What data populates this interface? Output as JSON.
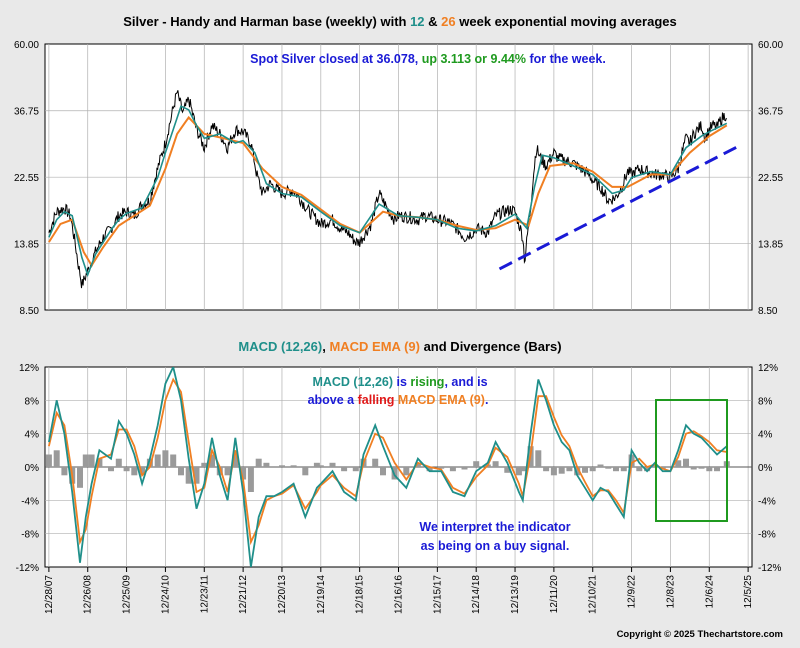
{
  "colors": {
    "background": "#e9e9e9",
    "panel": "#ffffff",
    "price": "#000000",
    "ema_fast": "#1f8f8a",
    "ema_slow": "#f07f22",
    "trendline": "#1a1ad6",
    "histogram": "#9a9a9a",
    "highlight_box": "#1f9a1f",
    "green_text": "#1f9a1f",
    "blue_text": "#1a1ad6",
    "red_text": "#e01818"
  },
  "top_title": {
    "part1": "Silver - Handy and Harman base (weekly) with ",
    "fast": "12",
    "amp": " & ",
    "slow": "26",
    "part2": " week exponential moving averages"
  },
  "top_annotation": {
    "part1": "Spot Silver closed at 36.078, ",
    "part2": "up 3.113 or 9.44%",
    "part3": " for the week."
  },
  "bottom_title": {
    "macd": "MACD (12,26)",
    "sep": ", ",
    "ema": "MACD EMA (9)",
    "rest": " and Divergence (Bars)"
  },
  "bottom_annotation": {
    "line1_a": "MACD (12,26)",
    "line1_b": " is ",
    "line1_c": "rising",
    "line1_d": ", and is",
    "line2_a": "above a ",
    "line2_b": "falling",
    "line2_c": " MACD EMA (9)",
    "line2_d": "."
  },
  "interpretation": {
    "line1": "We interpret the indicator",
    "line2": "as being on a buy signal."
  },
  "copyright": "Copyright © 2025 Thechartstore.com",
  "chart_data": [
    {
      "type": "line",
      "title": "Silver - Handy and Harman base (weekly) with 12 & 26 week exponential moving averages",
      "y_scale": "log",
      "ylim": [
        8.5,
        60.0
      ],
      "y_ticks": [
        "60.00",
        "36.75",
        "22.55",
        "13.85",
        "8.50"
      ],
      "y_tick_values": [
        60.0,
        36.75,
        22.55,
        13.85,
        8.5
      ],
      "x_tick_labels": [
        "12/28/07",
        "12/26/08",
        "12/25/09",
        "12/24/10",
        "12/23/11",
        "12/21/12",
        "12/20/13",
        "12/19/14",
        "12/18/15",
        "12/16/16",
        "12/15/17",
        "12/14/18",
        "12/13/19",
        "12/11/20",
        "12/10/21",
        "12/9/22",
        "12/8/23",
        "12/6/24",
        "12/5/25"
      ],
      "x_tick_years": [
        2008.0,
        2009.0,
        2010.0,
        2011.0,
        2012.0,
        2013.0,
        2014.0,
        2015.0,
        2016.0,
        2017.0,
        2018.0,
        2019.0,
        2020.0,
        2021.0,
        2022.0,
        2023.0,
        2024.0,
        2025.0,
        2026.0
      ],
      "xlim": [
        2007.9,
        2026.1
      ],
      "series": [
        {
          "name": "Silver (weekly)",
          "x": [
            2008.0,
            2008.2,
            2008.4,
            2008.55,
            2008.75,
            2008.85,
            2009.0,
            2009.2,
            2009.4,
            2009.6,
            2009.8,
            2010.0,
            2010.2,
            2010.4,
            2010.6,
            2010.8,
            2011.0,
            2011.15,
            2011.3,
            2011.45,
            2011.6,
            2011.8,
            2012.0,
            2012.2,
            2012.4,
            2012.6,
            2012.8,
            2013.0,
            2013.2,
            2013.35,
            2013.5,
            2013.7,
            2014.0,
            2014.3,
            2014.5,
            2014.7,
            2014.9,
            2015.0,
            2015.3,
            2015.5,
            2015.7,
            2015.9,
            2016.0,
            2016.3,
            2016.5,
            2016.7,
            2016.9,
            2017.0,
            2017.3,
            2017.5,
            2017.7,
            2018.0,
            2018.3,
            2018.5,
            2018.7,
            2018.9,
            2019.0,
            2019.3,
            2019.5,
            2019.7,
            2019.9,
            2020.0,
            2020.2,
            2020.25,
            2020.4,
            2020.55,
            2020.65,
            2020.8,
            2021.0,
            2021.1,
            2021.3,
            2021.5,
            2021.7,
            2021.9,
            2022.0,
            2022.2,
            2022.4,
            2022.6,
            2022.75,
            2022.9,
            2023.0,
            2023.2,
            2023.4,
            2023.6,
            2023.8,
            2024.0,
            2024.2,
            2024.4,
            2024.5,
            2024.6,
            2024.8,
            2024.9,
            2025.0,
            2025.1,
            2025.2,
            2025.3,
            2025.45
          ],
          "y": [
            15.0,
            17.5,
            18.0,
            17.0,
            12.0,
            10.2,
            11.3,
            13.0,
            14.5,
            15.5,
            17.0,
            17.5,
            17.0,
            18.5,
            19.0,
            24.0,
            29.0,
            35.0,
            42.0,
            36.0,
            40.0,
            32.0,
            28.0,
            33.0,
            31.0,
            28.0,
            32.0,
            31.5,
            29.0,
            23.0,
            20.0,
            21.5,
            20.0,
            20.5,
            19.0,
            17.5,
            16.5,
            16.0,
            16.5,
            15.5,
            15.0,
            14.0,
            14.0,
            16.0,
            20.0,
            18.0,
            16.5,
            17.0,
            16.8,
            16.5,
            17.0,
            16.5,
            16.2,
            15.5,
            14.5,
            15.0,
            15.5,
            15.0,
            17.0,
            17.5,
            17.8,
            17.5,
            14.5,
            12.0,
            18.0,
            28.0,
            26.0,
            24.5,
            27.0,
            26.0,
            25.5,
            25.0,
            24.0,
            23.0,
            22.0,
            21.0,
            19.0,
            19.5,
            21.0,
            23.5,
            23.0,
            24.0,
            23.5,
            23.0,
            23.0,
            22.5,
            24.0,
            30.0,
            29.0,
            31.0,
            33.0,
            30.0,
            32.0,
            33.0,
            32.5,
            34.5,
            36.0
          ]
        },
        {
          "name": "12 week EMA",
          "x": [
            2008.0,
            2008.2,
            2008.4,
            2008.6,
            2008.85,
            2009.0,
            2009.2,
            2009.4,
            2009.6,
            2009.8,
            2010.0,
            2010.4,
            2010.8,
            2011.0,
            2011.2,
            2011.4,
            2011.6,
            2011.8,
            2012.0,
            2012.4,
            2012.8,
            2013.0,
            2013.3,
            2013.6,
            2014.0,
            2014.5,
            2015.0,
            2015.5,
            2016.0,
            2016.5,
            2017.0,
            2017.5,
            2018.0,
            2018.5,
            2019.0,
            2019.5,
            2020.0,
            2020.3,
            2020.5,
            2020.7,
            2021.0,
            2021.5,
            2022.0,
            2022.5,
            2022.8,
            2023.0,
            2023.5,
            2024.0,
            2024.4,
            2024.8,
            2025.0,
            2025.45
          ],
          "y": [
            14.5,
            16.5,
            17.5,
            17.0,
            12.5,
            11.0,
            12.8,
            14.0,
            15.3,
            16.5,
            17.3,
            18.0,
            22.5,
            27.0,
            32.0,
            38.0,
            37.0,
            33.0,
            30.0,
            31.0,
            29.0,
            29.5,
            27.0,
            21.5,
            20.0,
            19.5,
            17.5,
            15.8,
            15.0,
            18.5,
            17.0,
            16.8,
            16.5,
            15.5,
            15.2,
            15.8,
            17.2,
            15.5,
            21.0,
            26.5,
            26.0,
            24.5,
            23.0,
            20.0,
            20.5,
            22.5,
            23.5,
            23.0,
            28.0,
            30.5,
            31.5,
            33.5
          ]
        },
        {
          "name": "26 week EMA",
          "x": [
            2008.0,
            2008.3,
            2008.6,
            2008.9,
            2009.1,
            2009.4,
            2009.8,
            2010.2,
            2010.6,
            2011.0,
            2011.3,
            2011.6,
            2012.0,
            2012.5,
            2013.0,
            2013.5,
            2014.0,
            2014.5,
            2015.0,
            2015.5,
            2016.0,
            2016.6,
            2017.0,
            2017.5,
            2018.0,
            2018.5,
            2019.0,
            2019.5,
            2020.0,
            2020.35,
            2020.6,
            2020.9,
            2021.5,
            2022.0,
            2022.5,
            2022.9,
            2023.5,
            2024.0,
            2024.5,
            2025.0,
            2025.45
          ],
          "y": [
            14.0,
            16.0,
            16.5,
            13.0,
            11.8,
            13.5,
            15.8,
            17.0,
            18.3,
            24.0,
            31.0,
            35.0,
            31.0,
            30.0,
            29.0,
            24.0,
            21.0,
            19.8,
            17.8,
            16.0,
            15.0,
            17.5,
            17.0,
            16.8,
            16.5,
            15.8,
            15.3,
            15.5,
            16.5,
            15.8,
            20.0,
            24.5,
            25.0,
            23.5,
            21.0,
            21.0,
            23.0,
            23.0,
            27.0,
            30.5,
            33.0
          ]
        },
        {
          "name": "Trendline",
          "x": [
            2019.6,
            2025.8
          ],
          "y": [
            11.5,
            28.5
          ]
        }
      ]
    },
    {
      "type": "line",
      "title": "MACD (12,26), MACD EMA (9) and Divergence (Bars)",
      "ylim": [
        -12,
        12
      ],
      "y_ticks": [
        "12%",
        "8%",
        "4%",
        "0%",
        "-4%",
        "-8%",
        "-12%"
      ],
      "y_tick_values": [
        12,
        8,
        4,
        0,
        -4,
        -8,
        -12
      ],
      "series": [
        {
          "name": "MACD (12,26)",
          "x": [
            2008.0,
            2008.2,
            2008.4,
            2008.6,
            2008.8,
            2008.95,
            2009.1,
            2009.3,
            2009.6,
            2009.8,
            2010.0,
            2010.2,
            2010.4,
            2010.6,
            2010.8,
            2011.0,
            2011.2,
            2011.4,
            2011.6,
            2011.8,
            2012.0,
            2012.2,
            2012.4,
            2012.6,
            2012.8,
            2013.0,
            2013.2,
            2013.4,
            2013.6,
            2013.8,
            2014.0,
            2014.3,
            2014.6,
            2014.9,
            2015.0,
            2015.3,
            2015.6,
            2015.9,
            2016.1,
            2016.4,
            2016.6,
            2016.9,
            2017.2,
            2017.5,
            2017.8,
            2018.1,
            2018.4,
            2018.7,
            2019.0,
            2019.3,
            2019.5,
            2019.8,
            2020.1,
            2020.2,
            2020.4,
            2020.6,
            2020.8,
            2021.0,
            2021.2,
            2021.4,
            2021.6,
            2021.8,
            2022.0,
            2022.2,
            2022.4,
            2022.6,
            2022.8,
            2023.0,
            2023.2,
            2023.4,
            2023.6,
            2023.8,
            2024.0,
            2024.2,
            2024.4,
            2024.6,
            2024.8,
            2025.0,
            2025.2,
            2025.45
          ],
          "y": [
            3.0,
            8.0,
            4.0,
            -3.0,
            -11.5,
            -6.0,
            -2.0,
            2.0,
            1.0,
            5.5,
            4.0,
            1.5,
            -2.0,
            1.0,
            5.0,
            10.0,
            12.0,
            8.0,
            1.0,
            -5.0,
            -2.0,
            3.5,
            -1.0,
            -4.0,
            3.5,
            -3.0,
            -12.0,
            -6.0,
            -3.5,
            -3.5,
            -3.0,
            -2.0,
            -6.0,
            -2.5,
            -2.0,
            -0.5,
            -3.0,
            -4.0,
            1.5,
            5.0,
            2.5,
            -1.0,
            -2.5,
            1.0,
            -0.5,
            -0.5,
            -3.0,
            -3.5,
            -0.5,
            0.5,
            3.0,
            0.5,
            -3.0,
            -4.0,
            4.0,
            10.5,
            8.0,
            5.0,
            3.0,
            2.0,
            -1.0,
            -2.5,
            -4.0,
            -2.5,
            -3.0,
            -4.5,
            -6.0,
            2.0,
            0.5,
            -0.5,
            0.5,
            -0.5,
            -0.5,
            2.0,
            5.0,
            4.0,
            3.5,
            2.5,
            1.5,
            2.5
          ]
        },
        {
          "name": "MACD EMA (9)",
          "x": [
            2008.0,
            2008.2,
            2008.4,
            2008.6,
            2008.8,
            2008.95,
            2009.1,
            2009.3,
            2009.6,
            2009.8,
            2010.0,
            2010.2,
            2010.4,
            2010.6,
            2010.8,
            2011.0,
            2011.2,
            2011.4,
            2011.6,
            2011.8,
            2012.0,
            2012.2,
            2012.4,
            2012.6,
            2012.8,
            2013.0,
            2013.2,
            2013.4,
            2013.6,
            2013.8,
            2014.0,
            2014.3,
            2014.6,
            2014.9,
            2015.0,
            2015.3,
            2015.6,
            2015.9,
            2016.1,
            2016.4,
            2016.6,
            2016.9,
            2017.2,
            2017.5,
            2017.8,
            2018.1,
            2018.4,
            2018.7,
            2019.0,
            2019.3,
            2019.5,
            2019.8,
            2020.1,
            2020.2,
            2020.4,
            2020.6,
            2020.8,
            2021.0,
            2021.2,
            2021.4,
            2021.6,
            2021.8,
            2022.0,
            2022.2,
            2022.4,
            2022.6,
            2022.8,
            2023.0,
            2023.2,
            2023.4,
            2023.6,
            2023.8,
            2024.0,
            2024.2,
            2024.4,
            2024.6,
            2024.8,
            2025.0,
            2025.2,
            2025.45
          ],
          "y": [
            2.5,
            6.5,
            5.0,
            -1.0,
            -9.0,
            -7.5,
            -3.5,
            1.0,
            1.5,
            4.5,
            4.5,
            2.5,
            -1.0,
            0.0,
            3.5,
            8.0,
            10.5,
            9.0,
            3.0,
            -3.0,
            -2.5,
            2.0,
            0.0,
            -3.0,
            2.0,
            -1.5,
            -9.0,
            -7.0,
            -4.0,
            -3.5,
            -3.2,
            -2.2,
            -5.0,
            -3.0,
            -2.2,
            -1.0,
            -2.5,
            -3.5,
            0.5,
            4.0,
            3.5,
            0.5,
            -1.5,
            0.5,
            0.0,
            -0.3,
            -2.5,
            -3.2,
            -1.2,
            0.2,
            2.3,
            1.2,
            -2.0,
            -3.5,
            1.5,
            8.5,
            8.5,
            6.0,
            3.8,
            2.5,
            0.0,
            -1.8,
            -3.5,
            -2.8,
            -2.8,
            -4.0,
            -5.5,
            0.5,
            1.0,
            0.0,
            0.3,
            -0.2,
            -0.5,
            1.2,
            4.0,
            4.3,
            3.7,
            3.0,
            2.0,
            1.8
          ]
        },
        {
          "name": "Divergence",
          "x": [
            2008.0,
            2008.2,
            2008.4,
            2008.6,
            2008.8,
            2008.95,
            2009.1,
            2009.3,
            2009.6,
            2009.8,
            2010.0,
            2010.2,
            2010.4,
            2010.6,
            2010.8,
            2011.0,
            2011.2,
            2011.4,
            2011.6,
            2011.8,
            2012.0,
            2012.2,
            2012.4,
            2012.6,
            2012.8,
            2013.0,
            2013.2,
            2013.4,
            2013.6,
            2013.8,
            2014.0,
            2014.3,
            2014.6,
            2014.9,
            2015.0,
            2015.3,
            2015.6,
            2015.9,
            2016.1,
            2016.4,
            2016.6,
            2016.9,
            2017.2,
            2017.5,
            2017.8,
            2018.1,
            2018.4,
            2018.7,
            2019.0,
            2019.3,
            2019.5,
            2019.8,
            2020.1,
            2020.2,
            2020.4,
            2020.6,
            2020.8,
            2021.0,
            2021.2,
            2021.4,
            2021.6,
            2021.8,
            2022.0,
            2022.2,
            2022.4,
            2022.6,
            2022.8,
            2023.0,
            2023.2,
            2023.4,
            2023.6,
            2023.8,
            2024.0,
            2024.2,
            2024.4,
            2024.6,
            2024.8,
            2025.0,
            2025.2,
            2025.45
          ],
          "y": [
            1.5,
            2.0,
            -1.0,
            -2.0,
            -2.5,
            1.5,
            1.5,
            1.0,
            -0.5,
            1.0,
            -0.5,
            -1.0,
            -1.0,
            1.0,
            1.5,
            2.0,
            1.5,
            -1.0,
            -2.0,
            -2.0,
            0.5,
            1.5,
            -1.0,
            -1.0,
            1.5,
            -1.5,
            -3.0,
            1.0,
            0.5,
            0.0,
            0.2,
            0.2,
            -1.0,
            0.5,
            0.2,
            0.5,
            -0.5,
            -0.5,
            1.0,
            1.0,
            -1.0,
            -1.5,
            -1.0,
            0.5,
            -0.5,
            -0.2,
            -0.5,
            -0.3,
            0.7,
            0.3,
            0.7,
            -0.7,
            -1.0,
            -0.5,
            2.5,
            2.0,
            -0.5,
            -1.0,
            -0.8,
            -0.5,
            -1.0,
            -0.7,
            -0.5,
            0.3,
            -0.2,
            -0.5,
            -0.5,
            1.5,
            -0.5,
            -0.5,
            0.2,
            -0.3,
            0.0,
            0.8,
            1.0,
            -0.3,
            -0.2,
            -0.5,
            -0.5,
            0.7
          ]
        }
      ]
    }
  ]
}
